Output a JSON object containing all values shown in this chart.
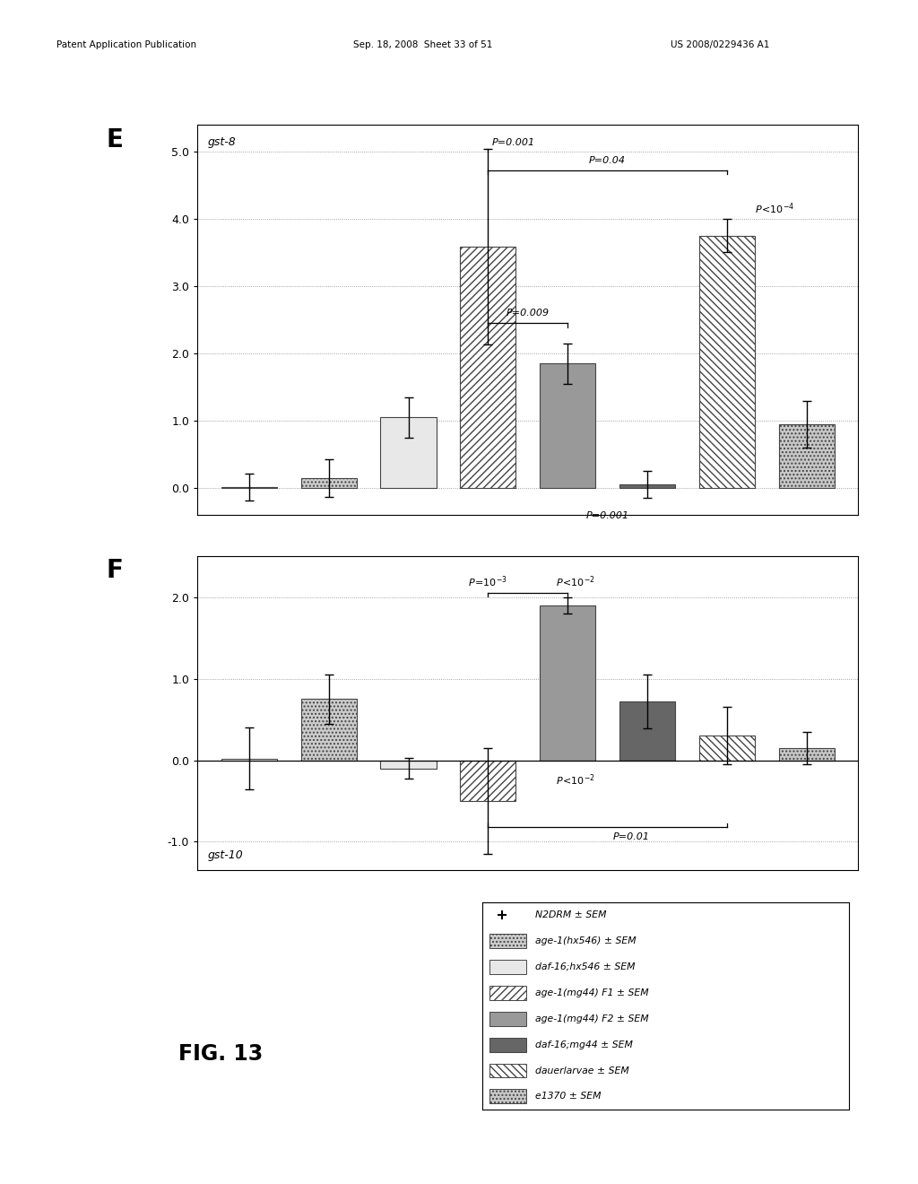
{
  "panel_E": {
    "title": "gst-8",
    "ylim": [
      -0.4,
      5.4
    ],
    "yticks": [
      0.0,
      1.0,
      2.0,
      3.0,
      4.0,
      5.0
    ],
    "ytick_labels": [
      "0.0",
      "1.0",
      "2.0",
      "3.0",
      "4.0",
      "5.0"
    ],
    "bars": [
      {
        "label": "N2DRM",
        "value": 0.02,
        "yerr": 0.2,
        "color": "#ffffff",
        "hatch": null,
        "edgecolor": "#444444"
      },
      {
        "label": "age-1(hx546)",
        "value": 0.15,
        "yerr": 0.28,
        "color": "#cccccc",
        "hatch": "....",
        "edgecolor": "#444444"
      },
      {
        "label": "daf-16;hx546",
        "value": 1.05,
        "yerr": 0.3,
        "color": "#e8e8e8",
        "hatch": null,
        "edgecolor": "#444444"
      },
      {
        "label": "age-1(mg44)F1",
        "value": 3.58,
        "yerr": 1.45,
        "color": "#ffffff",
        "hatch": "////",
        "edgecolor": "#444444"
      },
      {
        "label": "age-1(mg44)F2",
        "value": 1.85,
        "yerr": 0.3,
        "color": "#999999",
        "hatch": null,
        "edgecolor": "#444444"
      },
      {
        "label": "daf-16;mg44",
        "value": 0.05,
        "yerr": 0.2,
        "color": "#666666",
        "hatch": null,
        "edgecolor": "#444444"
      },
      {
        "label": "dauerlarvae",
        "value": 3.75,
        "yerr": 0.25,
        "color": "#ffffff",
        "hatch": "\\\\\\\\",
        "edgecolor": "#444444"
      },
      {
        "label": "e1370",
        "value": 0.95,
        "yerr": 0.35,
        "color": "#c8c8c8",
        "hatch": "....",
        "edgecolor": "#444444"
      }
    ]
  },
  "panel_F": {
    "title": "gst-10",
    "ylim": [
      -1.35,
      2.5
    ],
    "yticks": [
      -1.0,
      0.0,
      1.0,
      2.0
    ],
    "ytick_labels": [
      "-1.0",
      "0.0",
      "1.0",
      "2.0"
    ],
    "bars": [
      {
        "label": "N2DRM",
        "value": 0.02,
        "yerr": 0.38,
        "color": "#ffffff",
        "hatch": null,
        "edgecolor": "#444444"
      },
      {
        "label": "age-1(hx546)",
        "value": 0.75,
        "yerr": 0.3,
        "color": "#cccccc",
        "hatch": "....",
        "edgecolor": "#444444"
      },
      {
        "label": "daf-16;hx546",
        "value": -0.1,
        "yerr": 0.13,
        "color": "#e8e8e8",
        "hatch": null,
        "edgecolor": "#444444"
      },
      {
        "label": "age-1(mg44)F1",
        "value": -0.5,
        "yerr": 0.65,
        "color": "#ffffff",
        "hatch": "////",
        "edgecolor": "#444444"
      },
      {
        "label": "age-1(mg44)F2",
        "value": 1.9,
        "yerr": 0.1,
        "color": "#999999",
        "hatch": null,
        "edgecolor": "#444444"
      },
      {
        "label": "daf-16;mg44",
        "value": 0.72,
        "yerr": 0.33,
        "color": "#666666",
        "hatch": null,
        "edgecolor": "#444444"
      },
      {
        "label": "dauerlarvae",
        "value": 0.3,
        "yerr": 0.35,
        "color": "#ffffff",
        "hatch": "\\\\\\\\",
        "edgecolor": "#444444"
      },
      {
        "label": "e1370",
        "value": 0.15,
        "yerr": 0.2,
        "color": "#c8c8c8",
        "hatch": "....",
        "edgecolor": "#444444"
      }
    ]
  },
  "legend_entries": [
    {
      "label": "N2DRM ± SEM",
      "color": "#ffffff",
      "hatch": null,
      "marker": true
    },
    {
      "label": "age-1(hx546) ± SEM",
      "color": "#cccccc",
      "hatch": "...."
    },
    {
      "label": "daf-16;hx546 ± SEM",
      "color": "#e8e8e8",
      "hatch": null
    },
    {
      "label": "age-1(mg44) F1 ± SEM",
      "color": "#ffffff",
      "hatch": "////"
    },
    {
      "label": "age-1(mg44) F2 ± SEM",
      "color": "#999999",
      "hatch": null
    },
    {
      "label": "daf-16;mg44 ± SEM",
      "color": "#666666",
      "hatch": null
    },
    {
      "label": "dauerlarvae ± SEM",
      "color": "#ffffff",
      "hatch": "\\\\\\\\"
    },
    {
      "label": "e1370 ± SEM",
      "color": "#c8c8c8",
      "hatch": "...."
    }
  ],
  "header_left": "Patent Application Publication",
  "header_mid": "Sep. 18, 2008  Sheet 33 of 51",
  "header_right": "US 2008/0229436 A1",
  "fig_label": "FIG. 13"
}
